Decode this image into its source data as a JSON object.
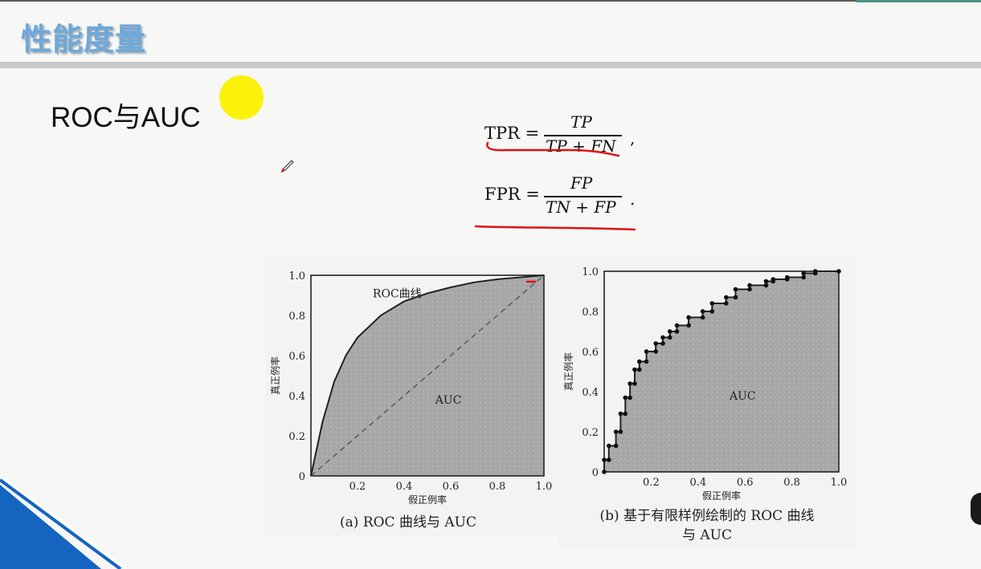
{
  "slide": {
    "title": "性能度量",
    "subheading": "ROC与AUC"
  },
  "formulas": {
    "tpr": {
      "lhs": "TPR =",
      "numerator": "TP",
      "denominator": "TP + FN",
      "punct": ","
    },
    "fpr": {
      "lhs": "FPR =",
      "numerator": "FP",
      "denominator": "TN + FP",
      "punct": "."
    }
  },
  "colors": {
    "title": "#6fa8d8",
    "highlight": "#fbf20a",
    "annotation": "#e01010",
    "corner_accent": "#1565c0"
  },
  "chart_data": [
    {
      "type": "area",
      "caption": "(a) ROC 曲线与 AUC",
      "xlabel": "假正例率",
      "ylabel": "真正例率",
      "xlim": [
        0,
        1.0
      ],
      "ylim": [
        0,
        1.0
      ],
      "x_ticks": [
        "0.2",
        "0.4",
        "0.6",
        "0.8",
        "1.0"
      ],
      "y_ticks": [
        "0",
        "0.2",
        "0.4",
        "0.6",
        "0.8",
        "1.0"
      ],
      "annotations": [
        "ROC曲线",
        "AUC"
      ],
      "diagonal": true,
      "series": [
        {
          "x": [
            0,
            0.05,
            0.1,
            0.15,
            0.2,
            0.3,
            0.4,
            0.5,
            0.6,
            0.7,
            0.8,
            0.9,
            1.0
          ],
          "y": [
            0,
            0.27,
            0.47,
            0.6,
            0.69,
            0.8,
            0.87,
            0.91,
            0.94,
            0.965,
            0.98,
            0.99,
            1.0
          ]
        }
      ]
    },
    {
      "type": "line",
      "caption": "(b) 基于有限样例绘制的 ROC 曲线 与 AUC",
      "xlabel": "假正例率",
      "ylabel": "真正例率",
      "xlim": [
        0,
        1.0
      ],
      "ylim": [
        0,
        1.0
      ],
      "x_ticks": [
        "0.2",
        "0.4",
        "0.6",
        "0.8",
        "1.0"
      ],
      "y_ticks": [
        "0",
        "0.2",
        "0.4",
        "0.6",
        "0.8",
        "1.0"
      ],
      "annotations": [
        "AUC"
      ],
      "series": [
        {
          "x": [
            0,
            0,
            0.02,
            0.02,
            0.05,
            0.05,
            0.07,
            0.07,
            0.09,
            0.09,
            0.11,
            0.11,
            0.13,
            0.13,
            0.15,
            0.15,
            0.18,
            0.18,
            0.22,
            0.22,
            0.25,
            0.25,
            0.28,
            0.28,
            0.31,
            0.31,
            0.36,
            0.36,
            0.42,
            0.42,
            0.46,
            0.46,
            0.52,
            0.52,
            0.56,
            0.56,
            0.62,
            0.62,
            0.69,
            0.69,
            0.72,
            0.72,
            0.78,
            0.78,
            0.85,
            0.85,
            0.9,
            0.9,
            1.0
          ],
          "y": [
            0,
            0.06,
            0.06,
            0.13,
            0.13,
            0.2,
            0.2,
            0.29,
            0.29,
            0.37,
            0.37,
            0.44,
            0.44,
            0.51,
            0.51,
            0.55,
            0.55,
            0.6,
            0.6,
            0.64,
            0.64,
            0.67,
            0.67,
            0.7,
            0.7,
            0.73,
            0.73,
            0.77,
            0.77,
            0.8,
            0.8,
            0.84,
            0.84,
            0.87,
            0.87,
            0.91,
            0.91,
            0.93,
            0.93,
            0.95,
            0.95,
            0.96,
            0.96,
            0.97,
            0.97,
            0.99,
            0.99,
            1.0,
            1.0
          ]
        }
      ]
    }
  ]
}
